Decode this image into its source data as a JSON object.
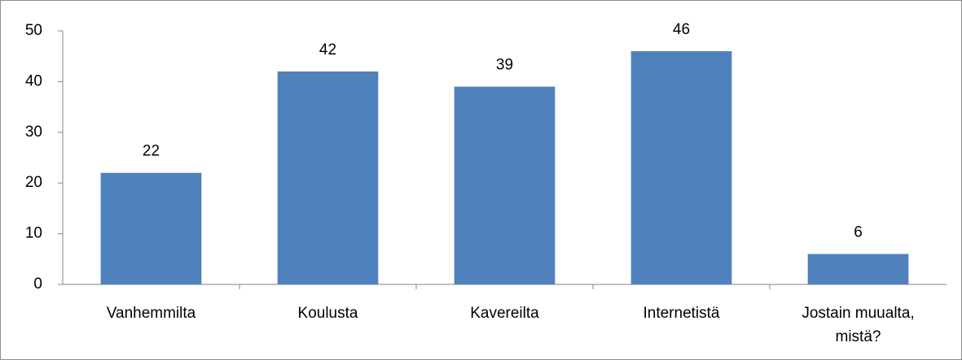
{
  "chart_data": {
    "type": "bar",
    "categories": [
      "Vanhemmilta",
      "Koulusta",
      "Kavereilta",
      "Internetistä",
      "Jostain muualta, mistä?"
    ],
    "values": [
      22,
      42,
      39,
      46,
      6
    ],
    "color": "#4f81bd",
    "ylim": [
      0,
      50
    ],
    "yticks": [
      0,
      10,
      20,
      30,
      40,
      50
    ],
    "grid": false
  }
}
